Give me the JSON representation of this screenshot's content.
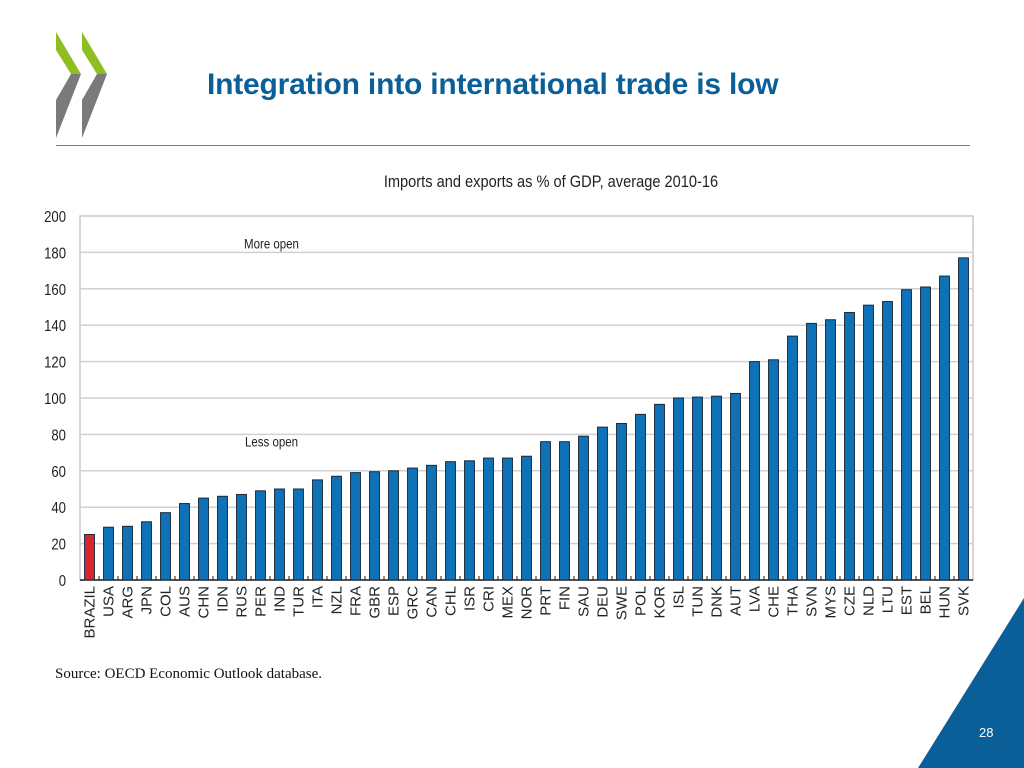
{
  "slide": {
    "title": "Integration into international trade is low",
    "source": "Source: OECD Economic Outlook database.",
    "page_number": "28",
    "logo": "oecd-chevron-logo",
    "colors": {
      "title": "#0b5f98",
      "bar": "#0f72b8",
      "highlight_bar": "#d9262c",
      "logo_green": "#8fbe22",
      "logo_gray": "#7a7a7a",
      "corner": "#0b5f98"
    }
  },
  "chart_data": {
    "type": "bar",
    "title": "Imports and exports as % of GDP, average 2010-16",
    "xlabel": "",
    "ylabel": "",
    "ylim": [
      0,
      200
    ],
    "yticks": [
      0,
      20,
      40,
      60,
      80,
      100,
      120,
      140,
      160,
      180,
      200
    ],
    "grid": true,
    "highlight": "BRAZIL",
    "annotations": [
      {
        "text": "More open",
        "x": "RUS",
        "y": 185
      },
      {
        "text": "Less open",
        "x": "RUS",
        "y": 76
      }
    ],
    "categories": [
      "BRAZIL",
      "USA",
      "ARG",
      "JPN",
      "COL",
      "AUS",
      "CHN",
      "IDN",
      "RUS",
      "PER",
      "IND",
      "TUR",
      "ITA",
      "NZL",
      "FRA",
      "GBR",
      "ESP",
      "GRC",
      "CAN",
      "CHL",
      "ISR",
      "CRI",
      "MEX",
      "NOR",
      "PRT",
      "FIN",
      "SAU",
      "DEU",
      "SWE",
      "POL",
      "KOR",
      "ISL",
      "TUN",
      "DNK",
      "AUT",
      "LVA",
      "CHE",
      "THA",
      "SVN",
      "MYS",
      "CZE",
      "NLD",
      "LTU",
      "EST",
      "BEL",
      "HUN",
      "SVK"
    ],
    "values": [
      25,
      29,
      29.5,
      32,
      37,
      42,
      45,
      46,
      47,
      49,
      50,
      50,
      55,
      57,
      59,
      59.5,
      60,
      61.5,
      63,
      65,
      65.5,
      67,
      67,
      68,
      76,
      76,
      79,
      84,
      86,
      91,
      96.5,
      100,
      100.5,
      101,
      102.5,
      120,
      121,
      134,
      141,
      143,
      147,
      151,
      153,
      159.5,
      161,
      167,
      177
    ]
  }
}
